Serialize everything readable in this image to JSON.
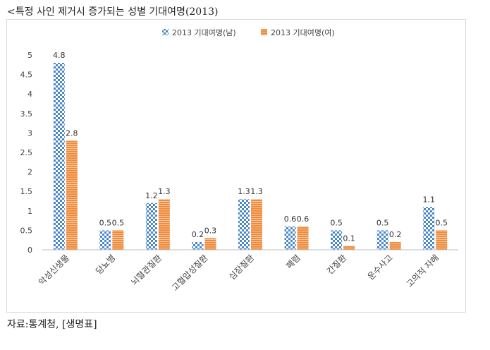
{
  "header": {
    "title": "<특정 사인 제거시 증가되는 성별 기대여명(2013)"
  },
  "footer": {
    "source": "자료:통계청, [생명표]"
  },
  "colors": {
    "male": "#4a86c8",
    "female": "#ef8b3c"
  },
  "chart_data": {
    "type": "bar",
    "title": "",
    "xlabel": "",
    "ylabel": "",
    "ylim": [
      0,
      5
    ],
    "yticks": [
      "0",
      "0.5",
      "1",
      "1.5",
      "2",
      "2.5",
      "3",
      "3.5",
      "4",
      "4.5",
      "5"
    ],
    "grid": false,
    "legend_position": "top",
    "categories": [
      "악성신생물",
      "당뇨병",
      "뇌혈관질환",
      "고혈압성질환",
      "심장질환",
      "폐렴",
      "간질환",
      "운수사고",
      "고의적 자해"
    ],
    "series": [
      {
        "name": "2013 기대여명(남)",
        "values": [
          4.8,
          0.5,
          1.2,
          0.2,
          1.3,
          0.6,
          0.5,
          0.5,
          1.1
        ],
        "labels": [
          "4.8",
          "0.5",
          "1.2",
          "0.2",
          "1.3",
          "0.6",
          "0.5",
          "0.5",
          "1.1"
        ]
      },
      {
        "name": "2013 기대여명(여)",
        "values": [
          2.8,
          0.5,
          1.3,
          0.3,
          1.3,
          0.6,
          0.1,
          0.2,
          0.5
        ],
        "labels": [
          "2.8",
          "0.5",
          "1.3",
          "0.3",
          "1.3",
          "0.6",
          "0.1",
          "0.2",
          "0.5"
        ]
      }
    ]
  }
}
